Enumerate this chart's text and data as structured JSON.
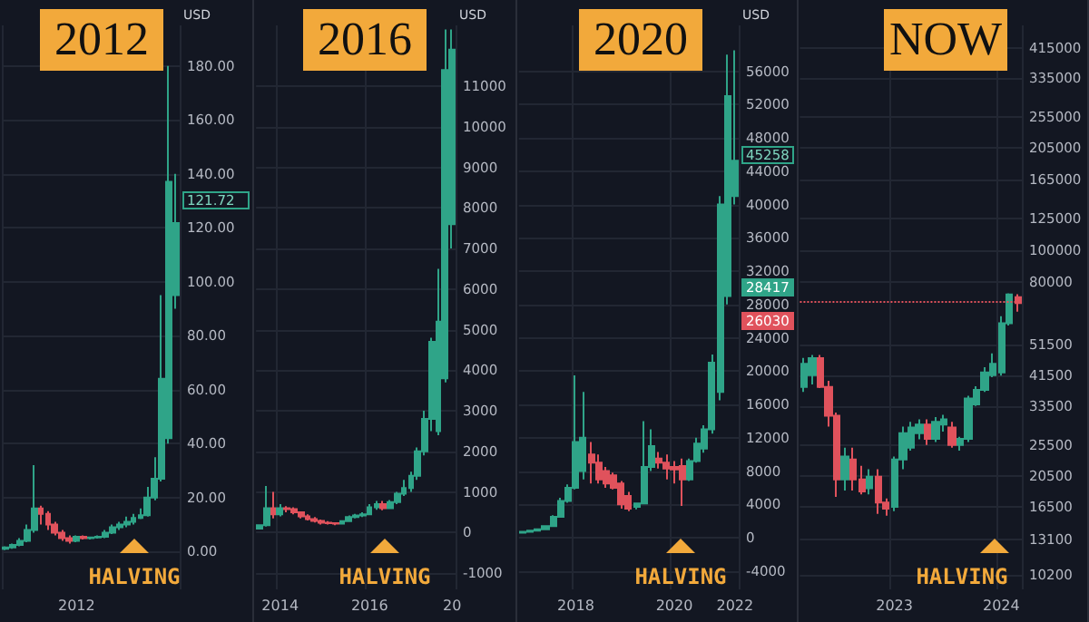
{
  "chart_data": [
    {
      "type": "candlestick",
      "title": "2012",
      "ylabel": "USD",
      "grid": true,
      "colors": [
        "#2fa488",
        "#2fa488",
        "#2fa488",
        "#2fa488",
        "#2fa488",
        "#e0525c",
        "#e0525c",
        "#e0525c",
        "#e0525c",
        "#e0525c",
        "#2fa488",
        "#e0525c",
        "#2fa488",
        "#2fa488",
        "#2fa488",
        "#2fa488",
        "#2fa488",
        "#2fa488",
        "#2fa488",
        "#2fa488",
        "#2fa488",
        "#2fa488",
        "#2fa488",
        "#2fa488",
        "#2fa488"
      ],
      "categories": [
        null,
        null,
        null,
        null,
        null,
        null,
        null,
        null,
        null,
        null,
        "2012",
        null,
        null,
        null,
        null,
        null,
        null,
        null,
        null,
        null,
        null,
        null,
        null,
        null,
        null
      ],
      "ohlc": [
        [
          1,
          2,
          0.5,
          1.5
        ],
        [
          1.5,
          3,
          1,
          2.5
        ],
        [
          2.5,
          5,
          2,
          4
        ],
        [
          4,
          10,
          3.5,
          8
        ],
        [
          8,
          32,
          7,
          16
        ],
        [
          16,
          17,
          10,
          14
        ],
        [
          14,
          15,
          8,
          10
        ],
        [
          10,
          11,
          6,
          7
        ],
        [
          7,
          8,
          4,
          5
        ],
        [
          5,
          6,
          3,
          4
        ],
        [
          4,
          6,
          3.5,
          5.5
        ],
        [
          5.5,
          6,
          4.5,
          5
        ],
        [
          5,
          5.5,
          4.5,
          5.2
        ],
        [
          5.2,
          6,
          4.8,
          5.5
        ],
        [
          5.5,
          8,
          5,
          7
        ],
        [
          7,
          10,
          6.5,
          9
        ],
        [
          9,
          11,
          8,
          10
        ],
        [
          10,
          13,
          9,
          11
        ],
        [
          11,
          14,
          10,
          12.5
        ],
        [
          12.5,
          16,
          12,
          13.5
        ],
        [
          13.5,
          24,
          13,
          20
        ],
        [
          20,
          35,
          19,
          27
        ],
        [
          27,
          95,
          26,
          64
        ],
        [
          42,
          180,
          40,
          137
        ],
        [
          95,
          140,
          90,
          121.72
        ]
      ],
      "ylim": [
        -14,
        195
      ],
      "yticks": [
        {
          "value": 0,
          "label": "0.00"
        },
        {
          "value": 20,
          "label": "20.00"
        },
        {
          "value": 40,
          "label": "40.00"
        },
        {
          "value": 60,
          "label": "60.00"
        },
        {
          "value": 80,
          "label": "80.00"
        },
        {
          "value": 100,
          "label": "100.00"
        },
        {
          "value": 120,
          "label": "120.00"
        },
        {
          "value": 140,
          "label": "140.00"
        },
        {
          "value": 160,
          "label": "160.00"
        },
        {
          "value": 180,
          "label": "180.00"
        }
      ],
      "annotations": [
        "121.72",
        "HALVING"
      ]
    },
    {
      "type": "candlestick",
      "title": "2016",
      "ylabel": "USD",
      "grid": true,
      "colors": [
        "#2fa488",
        "#2fa488",
        "#e0525c",
        "#2fa488",
        "#e0525c",
        "#e0525c",
        "#e0525c",
        "#e0525c",
        "#e0525c",
        "#e0525c",
        "#e0525c",
        "#e0525c",
        "#2fa488",
        "#2fa488",
        "#2fa488",
        "#2fa488",
        "#2fa488",
        "#2fa488",
        "#e0525c",
        "#2fa488",
        "#2fa488",
        "#2fa488",
        "#2fa488",
        "#2fa488",
        "#2fa488",
        "#2fa488",
        "#2fa488",
        "#2fa488",
        "#2fa488"
      ],
      "categories": [
        null,
        null,
        null,
        "2014",
        null,
        null,
        null,
        null,
        null,
        null,
        null,
        null,
        null,
        null,
        null,
        null,
        "2016",
        null,
        null,
        null,
        null,
        null,
        null,
        null,
        null,
        null,
        null,
        null,
        "20"
      ],
      "ohlc": [
        [
          100,
          200,
          90,
          180
        ],
        [
          180,
          1150,
          150,
          600
        ],
        [
          600,
          1000,
          350,
          450
        ],
        [
          450,
          700,
          400,
          600
        ],
        [
          600,
          650,
          500,
          580
        ],
        [
          580,
          620,
          450,
          500
        ],
        [
          500,
          520,
          350,
          400
        ],
        [
          400,
          450,
          300,
          330
        ],
        [
          330,
          380,
          250,
          290
        ],
        [
          290,
          320,
          200,
          240
        ],
        [
          240,
          280,
          200,
          230
        ],
        [
          230,
          250,
          180,
          220
        ],
        [
          220,
          300,
          200,
          280
        ],
        [
          280,
          420,
          260,
          380
        ],
        [
          380,
          460,
          350,
          420
        ],
        [
          420,
          500,
          380,
          450
        ],
        [
          450,
          700,
          430,
          620
        ],
        [
          620,
          780,
          560,
          700
        ],
        [
          700,
          780,
          550,
          600
        ],
        [
          600,
          800,
          580,
          750
        ],
        [
          750,
          1000,
          700,
          960
        ],
        [
          960,
          1300,
          900,
          1100
        ],
        [
          1100,
          1500,
          1000,
          1400
        ],
        [
          1400,
          2100,
          1300,
          2000
        ],
        [
          2000,
          3000,
          1900,
          2800
        ],
        [
          2800,
          4800,
          2500,
          4700
        ],
        [
          2500,
          6500,
          2400,
          5200
        ],
        [
          3800,
          12400,
          3700,
          11400
        ],
        [
          7600,
          12400,
          7000,
          11900
        ]
      ],
      "ylim": [
        -1400,
        12500
      ],
      "yticks": [
        -1000,
        0,
        1000,
        2000,
        3000,
        4000,
        5000,
        6000,
        7000,
        8000,
        9000,
        10000,
        11000
      ],
      "annotations": [
        "HALVING"
      ]
    },
    {
      "type": "candlestick",
      "title": "2020",
      "ylabel": "USD",
      "grid": true,
      "colors": [
        "#2fa488",
        "#2fa488",
        "#2fa488",
        "#2fa488",
        "#2fa488",
        "#2fa488",
        "#2fa488",
        "#2fa488",
        "#2fa488",
        "#e0525c",
        "#e0525c",
        "#e0525c",
        "#e0525c",
        "#e0525c",
        "#e0525c",
        "#2fa488",
        "#2fa488",
        "#2fa488",
        "#e0525c",
        "#e0525c",
        "#e0525c",
        "#e0525c",
        "#2fa488",
        "#2fa488",
        "#2fa488",
        "#2fa488",
        "#2fa488",
        "#2fa488",
        "#2fa488"
      ],
      "categories": [
        null,
        null,
        null,
        null,
        null,
        null,
        null,
        "2018",
        null,
        null,
        null,
        null,
        null,
        null,
        null,
        null,
        null,
        null,
        null,
        null,
        "2020",
        null,
        null,
        null,
        null,
        null,
        null,
        null,
        "2022"
      ],
      "ohlc": [
        [
          600,
          800,
          500,
          700
        ],
        [
          700,
          900,
          650,
          850
        ],
        [
          850,
          1100,
          800,
          1000
        ],
        [
          1000,
          1500,
          900,
          1400
        ],
        [
          1400,
          2700,
          1300,
          2500
        ],
        [
          2500,
          4800,
          2400,
          4400
        ],
        [
          4400,
          6400,
          4200,
          6000
        ],
        [
          6000,
          19500,
          5800,
          11500
        ],
        [
          8000,
          17500,
          7000,
          12000
        ],
        [
          10000,
          11500,
          6500,
          9000
        ],
        [
          9000,
          10000,
          6500,
          7000
        ],
        [
          8000,
          8500,
          6000,
          6500
        ],
        [
          7500,
          7800,
          5800,
          6000
        ],
        [
          6500,
          6800,
          3500,
          4000
        ],
        [
          5000,
          5500,
          3200,
          3500
        ],
        [
          3700,
          4200,
          3400,
          4100
        ],
        [
          4100,
          14000,
          4000,
          8500
        ],
        [
          8500,
          13000,
          8000,
          11000
        ],
        [
          9500,
          10300,
          8300,
          9000
        ],
        [
          9000,
          10000,
          7000,
          8300
        ],
        [
          8500,
          9200,
          6500,
          8200
        ],
        [
          8600,
          9500,
          3800,
          7000
        ],
        [
          7000,
          9500,
          6800,
          9200
        ],
        [
          9200,
          12000,
          9000,
          11300
        ],
        [
          10700,
          13500,
          10200,
          13000
        ],
        [
          13000,
          22000,
          12500,
          21000
        ],
        [
          17500,
          41000,
          16500,
          40000
        ],
        [
          29000,
          58000,
          28000,
          53000
        ],
        [
          41000,
          58500,
          40000,
          45258
        ]
      ],
      "ylim": [
        -6200,
        61500
      ],
      "yticks": [
        -4000,
        0,
        4000,
        8000,
        12000,
        16000,
        20000,
        24000,
        28000,
        32000,
        36000,
        40000,
        44000,
        48000,
        52000,
        56000
      ],
      "annotations": [
        "45258",
        "28417",
        "26030",
        "HALVING"
      ]
    },
    {
      "type": "candlestick",
      "title": "NOW",
      "grid": true,
      "log": true,
      "colors": [
        "#2fa488",
        "#2fa488",
        "#e0525c",
        "#e0525c",
        "#e0525c",
        "#2fa488",
        "#e0525c",
        "#e0525c",
        "#2fa488",
        "#e0525c",
        "#e0525c",
        "#2fa488",
        "#2fa488",
        "#2fa488",
        "#2fa488",
        "#e0525c",
        "#2fa488",
        "#2fa488",
        "#e0525c",
        "#2fa488",
        "#2fa488",
        "#2fa488",
        "#2fa488",
        "#2fa488",
        "#2fa488",
        "#2fa488",
        "#e0525c"
      ],
      "categories": [
        null,
        null,
        null,
        null,
        null,
        null,
        null,
        null,
        null,
        null,
        null,
        "2023",
        null,
        null,
        null,
        null,
        null,
        null,
        null,
        null,
        null,
        null,
        null,
        null,
        "2024",
        null,
        null
      ],
      "ohlc": [
        [
          38300,
          47000,
          37000,
          45100
        ],
        [
          41600,
          48000,
          39000,
          46900
        ],
        [
          46900,
          48000,
          38000,
          38300
        ],
        [
          38300,
          40000,
          29000,
          31300
        ],
        [
          31300,
          32000,
          17700,
          20000
        ],
        [
          20000,
          25000,
          18500,
          23500
        ],
        [
          23000,
          25000,
          18500,
          20000
        ],
        [
          20000,
          22000,
          18000,
          18400
        ],
        [
          18800,
          21500,
          18000,
          20400
        ],
        [
          20400,
          21500,
          15700,
          17000
        ],
        [
          17000,
          17500,
          15500,
          16300
        ],
        [
          16500,
          23500,
          16000,
          23000
        ],
        [
          23000,
          29000,
          21500,
          27700
        ],
        [
          25000,
          30000,
          24500,
          28800
        ],
        [
          27700,
          30500,
          26500,
          29400
        ],
        [
          29400,
          30500,
          25500,
          26600
        ],
        [
          26600,
          31000,
          26000,
          30000
        ],
        [
          29400,
          31500,
          28000,
          30500
        ],
        [
          28800,
          30000,
          25000,
          25500
        ],
        [
          25500,
          27000,
          24500,
          26600
        ],
        [
          26600,
          36000,
          26000,
          35300
        ],
        [
          33900,
          38500,
          33500,
          37500
        ],
        [
          37500,
          44000,
          37000,
          42400
        ],
        [
          41600,
          48500,
          41000,
          45100
        ],
        [
          42400,
          63000,
          41500,
          59900
        ],
        [
          59900,
          74000,
          59000,
          73400
        ],
        [
          72000,
          73500,
          65000,
          69100
        ]
      ],
      "ylim": [
        9240,
        486000
      ],
      "yticks": [
        10200,
        13100,
        16500,
        20500,
        25500,
        33500,
        41500,
        51500,
        80000,
        100000,
        125000,
        165000,
        205000,
        255000,
        335000,
        415000
      ],
      "ref_lines": [
        {
          "axis": "y",
          "value": 70000,
          "color": "#e0525c",
          "line_style": "dotted"
        }
      ],
      "annotations": [
        "HALVING"
      ]
    }
  ]
}
